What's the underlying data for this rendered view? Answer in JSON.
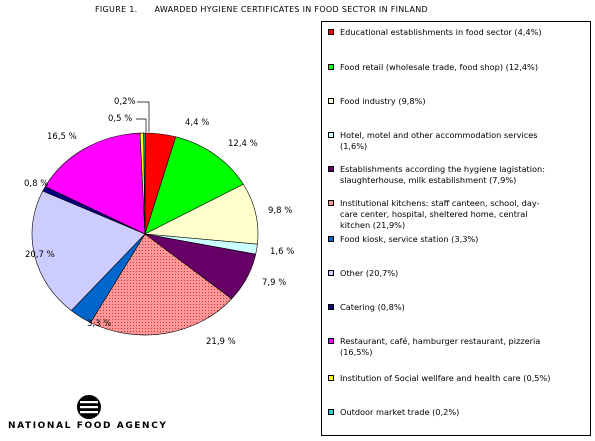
{
  "title": "FIGURE 1.      AWARDED HYGIENE CERTIFICATES IN FOOD SECTOR IN FINLAND",
  "brand": "NATIONAL FOOD AGENCY",
  "logo_icon": "nfa-logo-icon",
  "chart_data": {
    "type": "pie",
    "title": "AWARDED HYGIENE CERTIFICATES IN FOOD SECTOR IN FINLAND",
    "start_angle_deg": 0,
    "direction": "clockwise",
    "legend_position": "right",
    "slices": [
      {
        "label": "Educational establishments in food sector (4,4%)",
        "value": 4.4,
        "value_label": "4,4 %",
        "color": "#ff0000"
      },
      {
        "label": "Food retail (wholesale trade, food shop)    (12,4%)",
        "value": 12.4,
        "value_label": "12,4 %",
        "color": "#00ff00"
      },
      {
        "label": "Food industry  (9,8%)",
        "value": 9.8,
        "value_label": "9,8 %",
        "color": "#ffffcc"
      },
      {
        "label": "Hotel, motel and other accommodation services\n(1,6%)",
        "value": 1.6,
        "value_label": "1,6 %",
        "color": "#ccffff"
      },
      {
        "label": "Establishments according the hygiene lagistation:\nslaughterhouse, milk establishment  (7,9%)",
        "value": 7.9,
        "value_label": "7,9 %",
        "color": "#660066"
      },
      {
        "label": "Institutional kitchens: staff canteen, school, day-\ncare center, hospital, sheltered home, central\nkitchen  (21,9%)",
        "value": 21.9,
        "value_label": "21,9 %",
        "color": "#ff9999",
        "pattern": "dots"
      },
      {
        "label": "Food kiosk, service station  (3,3%)",
        "value": 3.3,
        "value_label": "3,3 %",
        "color": "#0066cc"
      },
      {
        "label": "Other  (20,7%)",
        "value": 20.7,
        "value_label": "20,7 %",
        "color": "#ccccff"
      },
      {
        "label": "Catering  (0,8%)",
        "value": 0.8,
        "value_label": "0,8 %",
        "color": "#000080"
      },
      {
        "label": "Restaurant, café, hamburger restaurant, pizzeria\n(16,5%)",
        "value": 16.5,
        "value_label": "16,5 %",
        "color": "#ff00ff"
      },
      {
        "label": "Institution of Social wellfare and health care  (0,5%)",
        "value": 0.5,
        "value_label": "0,5 %",
        "color": "#ffff00"
      },
      {
        "label": "Outdoor market trade  (0,2%)",
        "value": 0.2,
        "value_label": "0,2%",
        "color": "#33cccc"
      }
    ]
  }
}
